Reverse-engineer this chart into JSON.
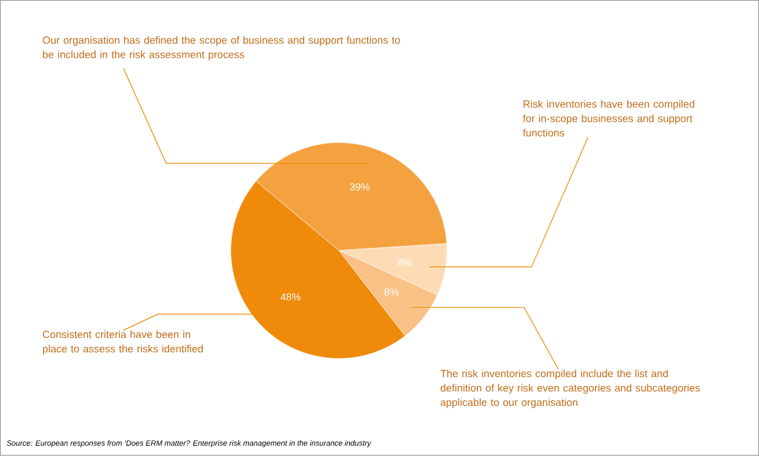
{
  "chart_data": {
    "type": "pie",
    "categories": [
      "Our organisation has defined the scope of business and support functions to be included in the risk assessment process",
      "Risk inventories have been compiled for in-scope businesses and support functions",
      "The risk inventories compiled include the list and definition of key risk even categories and subcategories applicable to our organisation",
      "Consistent criteria have been in place to assess the risks identified"
    ],
    "values": [
      39,
      8,
      8,
      48
    ],
    "value_labels": [
      "39%",
      "8%",
      "8%",
      "48%"
    ],
    "colors": [
      "#f4a240",
      "#fddcb5",
      "#f9c185",
      "#ef8a0a"
    ],
    "annotations": [
      "Source: European responses from ‘Does ERM matter? Enterprise risk management in the insurance industry"
    ]
  }
}
